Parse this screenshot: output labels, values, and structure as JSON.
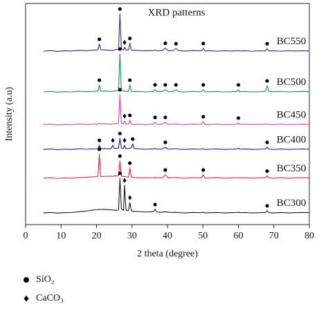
{
  "chart_data": {
    "type": "line",
    "title": "XRD  patterns",
    "x_label": "2 theta (degree)",
    "y_label": "Intensity (a.u)",
    "xlim": [
      0,
      80
    ],
    "xticks": [
      0,
      10,
      20,
      30,
      40,
      50,
      60,
      70,
      80
    ],
    "ylim": [
      0,
      100
    ],
    "x": [
      5,
      7,
      9,
      11,
      13,
      15,
      17,
      19,
      20.4,
      20.8,
      21.2,
      22,
      24,
      24.6,
      25,
      26.2,
      26.6,
      27,
      27.6,
      27.9,
      28.3,
      29,
      29.4,
      29.8,
      30.2,
      30.6,
      32,
      34,
      36,
      36.5,
      37,
      38.5,
      39.4,
      40.2,
      41.5,
      42.4,
      43.2,
      45,
      47,
      49.6,
      50.1,
      50.6,
      52,
      54,
      56,
      58,
      59.6,
      60,
      60.4,
      62,
      64,
      66,
      67.6,
      68.1,
      68.6,
      70,
      72,
      74,
      76,
      78,
      80
    ],
    "series": [
      {
        "name": "BC550",
        "color": "#2b2b7c",
        "values": [
          78.4,
          78.7,
          78.3,
          78.6,
          78.5,
          78.8,
          78.6,
          78.9,
          79.0,
          81.6,
          79.1,
          79.0,
          78.8,
          78.9,
          79.0,
          79.3,
          95.3,
          79.6,
          79.0,
          80.2,
          78.9,
          79.0,
          82.0,
          79.0,
          78.8,
          78.9,
          78.7,
          78.6,
          78.7,
          78.9,
          78.6,
          78.7,
          79.8,
          78.6,
          78.7,
          79.6,
          78.6,
          78.5,
          78.7,
          78.6,
          79.7,
          78.5,
          78.6,
          78.4,
          78.6,
          78.5,
          78.6,
          78.7,
          78.5,
          78.6,
          78.4,
          78.6,
          78.5,
          79.6,
          78.5,
          78.6,
          78.4,
          78.6,
          78.5,
          78.6,
          78.5
        ],
        "sio2_peaks": [
          20.8,
          26.6,
          29.4,
          39.4,
          42.4,
          50.1,
          68.1
        ],
        "caco3_peaks": [
          27.9
        ]
      },
      {
        "name": "BC500",
        "color": "#1b8a4c",
        "values": [
          60.0,
          60.2,
          59.9,
          60.1,
          60.0,
          60.3,
          60.1,
          60.2,
          60.4,
          63.1,
          60.3,
          60.4,
          60.2,
          60.3,
          60.4,
          60.6,
          77.2,
          60.7,
          60.3,
          60.5,
          60.2,
          60.3,
          63.1,
          60.3,
          60.2,
          60.1,
          60.2,
          60.0,
          60.2,
          61.0,
          60.1,
          60.2,
          61.0,
          60.1,
          60.2,
          61.0,
          60.1,
          60.0,
          60.2,
          60.1,
          61.0,
          60.0,
          60.1,
          60.2,
          60.0,
          60.1,
          60.2,
          61.0,
          60.1,
          60.2,
          60.0,
          60.1,
          60.3,
          62.8,
          60.2,
          60.1,
          60.2,
          60.0,
          60.1,
          60.2,
          60.1
        ],
        "sio2_peaks": [
          20.8,
          26.6,
          29.4,
          36.5,
          39.4,
          42.4,
          50.1,
          60,
          68.1
        ],
        "caco3_peaks": []
      },
      {
        "name": "BC450",
        "color": "#cc44b0",
        "values": [
          45.2,
          45.4,
          45.1,
          45.3,
          45.2,
          45.5,
          45.3,
          45.4,
          45.5,
          45.8,
          45.5,
          45.6,
          45.4,
          45.5,
          45.6,
          45.8,
          58.8,
          45.9,
          45.6,
          46.9,
          45.6,
          45.5,
          47.2,
          45.5,
          45.4,
          45.3,
          45.4,
          45.2,
          45.4,
          46.3,
          45.3,
          45.4,
          46.3,
          45.3,
          45.4,
          45.5,
          45.3,
          45.2,
          45.4,
          45.3,
          46.6,
          45.2,
          45.3,
          45.4,
          45.2,
          45.3,
          45.4,
          46.0,
          45.3,
          45.4,
          45.2,
          45.3,
          45.4,
          45.5,
          45.3,
          45.2,
          45.4,
          45.2,
          45.3,
          45.4,
          45.3
        ],
        "sio2_peaks": [
          26.6,
          29.4,
          36.5,
          39.4,
          50.1,
          60
        ],
        "caco3_peaks": [
          27.9
        ]
      },
      {
        "name": "BC400",
        "color": "#1c1c84",
        "values": [
          34.0,
          34.2,
          33.9,
          34.1,
          34.0,
          34.3,
          34.1,
          34.2,
          34.3,
          35.9,
          34.3,
          34.4,
          34.2,
          35.9,
          34.4,
          34.6,
          39.0,
          34.7,
          34.4,
          35.9,
          34.3,
          34.4,
          34.6,
          34.7,
          36.5,
          34.4,
          34.2,
          34.1,
          34.2,
          34.4,
          34.1,
          34.2,
          35.0,
          34.1,
          34.2,
          34.3,
          34.1,
          34.0,
          34.2,
          34.1,
          34.3,
          34.0,
          34.1,
          34.2,
          34.0,
          34.1,
          34.2,
          34.6,
          34.1,
          34.2,
          34.0,
          34.1,
          34.2,
          35.0,
          34.1,
          34.0,
          34.2,
          34.0,
          34.1,
          34.2,
          34.1
        ],
        "sio2_peaks": [
          20.8,
          26.6,
          30.2,
          39.4,
          68.1
        ],
        "caco3_peaks": [
          24.6,
          27.9
        ]
      },
      {
        "name": "BC350",
        "color": "#e0204c",
        "values": [
          21.0,
          21.2,
          20.9,
          21.1,
          21.0,
          21.3,
          21.4,
          21.6,
          21.8,
          31.9,
          21.7,
          21.8,
          21.9,
          21.8,
          22.0,
          22.1,
          28.8,
          22.0,
          21.7,
          21.8,
          21.6,
          21.5,
          25.6,
          21.5,
          21.4,
          21.3,
          21.2,
          21.1,
          21.2,
          21.3,
          21.1,
          21.2,
          22.5,
          21.1,
          21.2,
          21.3,
          21.1,
          21.0,
          21.2,
          21.1,
          22.5,
          21.0,
          21.1,
          21.2,
          21.0,
          21.1,
          21.2,
          21.3,
          21.1,
          21.2,
          21.0,
          21.1,
          21.2,
          22.0,
          21.1,
          21.0,
          21.2,
          21.0,
          21.1,
          21.2,
          21.1
        ],
        "sio2_peaks": [
          20.8,
          26.6,
          29.4,
          39.4,
          50.1,
          68.1
        ],
        "caco3_peaks": []
      },
      {
        "name": "BC300",
        "color": "#151515",
        "values": [
          5.3,
          5.5,
          5.2,
          5.4,
          5.5,
          5.8,
          6.1,
          6.6,
          6.8,
          6.9,
          6.8,
          6.9,
          6.7,
          6.6,
          6.5,
          6.6,
          21.0,
          7.2,
          6.4,
          17.8,
          6.6,
          6.3,
          10.0,
          6.3,
          6.1,
          6.0,
          5.9,
          5.7,
          5.8,
          6.9,
          5.7,
          5.6,
          5.8,
          5.6,
          5.5,
          5.6,
          5.4,
          5.3,
          5.5,
          5.4,
          5.6,
          5.3,
          5.4,
          5.5,
          5.3,
          5.4,
          5.5,
          5.6,
          5.4,
          5.5,
          5.3,
          5.4,
          5.5,
          6.3,
          5.4,
          5.3,
          5.5,
          5.3,
          5.4,
          5.5,
          5.4
        ],
        "sio2_peaks": [
          26.6,
          36.5,
          68.1
        ],
        "caco3_peaks": [
          27.9,
          29.4
        ]
      }
    ],
    "legend": [
      {
        "symbol": "circle",
        "label": "SiO₂"
      },
      {
        "symbol": "diamond",
        "label": "CaCO₃"
      }
    ]
  }
}
